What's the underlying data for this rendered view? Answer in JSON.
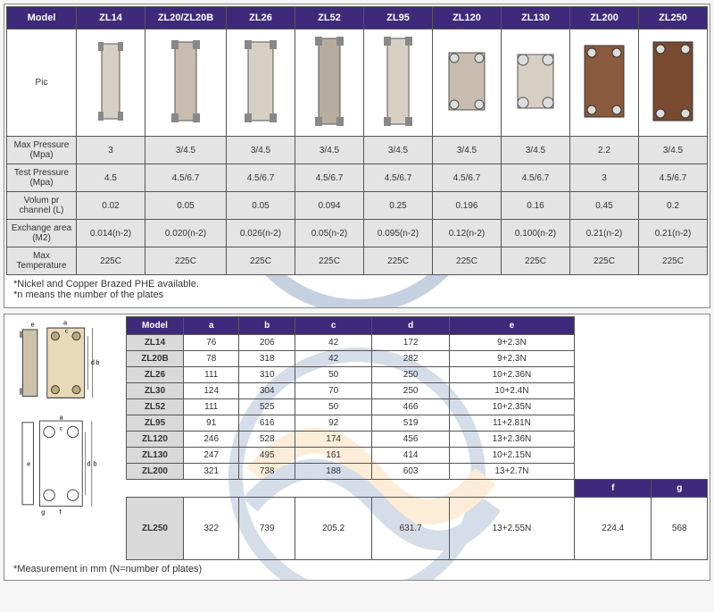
{
  "colors": {
    "header_bg": "#3d2a7a",
    "header_fg": "#ffffff",
    "rowhdr_bg": "#e4e4e4",
    "cell_bg": "#e4e4e4",
    "border": "#555555",
    "panel_border": "#888888",
    "background": "#f5f5f5"
  },
  "table1": {
    "header": [
      "Model",
      "ZL14",
      "ZL20/ZL20B",
      "ZL26",
      "ZL52",
      "ZL95",
      "ZL120",
      "ZL130",
      "ZL200",
      "ZL250"
    ],
    "pic_label": "Pic",
    "rows": [
      {
        "label": "Max Pressure (Mpa)",
        "values": [
          "3",
          "3/4.5",
          "3/4.5",
          "3/4.5",
          "3/4.5",
          "3/4.5",
          "3/4.5",
          "2.2",
          "3/4.5"
        ]
      },
      {
        "label": "Test Pressure (Mpa)",
        "values": [
          "4.5",
          "4.5/6.7",
          "4.5/6.7",
          "4.5/6.7",
          "4.5/6.7",
          "4.5/6.7",
          "4.5/6.7",
          "3",
          "4.5/6.7"
        ]
      },
      {
        "label": "Volum pr channel (L)",
        "values": [
          "0.02",
          "0.05",
          "0.05",
          "0.094",
          "0.25",
          "0.196",
          "0.16",
          "0.45",
          "0.2"
        ]
      },
      {
        "label": "Exchange area (M2)",
        "values": [
          "0.014(n-2)",
          "0.020(n-2)",
          "0.026(n-2)",
          "0.05(n-2)",
          "0.095(n-2)",
          "0.12(n-2)",
          "0.100(n-2)",
          "0.21(n-2)",
          "0.21(n-2)"
        ]
      },
      {
        "label": "Max Temperature",
        "values": [
          "225C",
          "225C",
          "225C",
          "225C",
          "225C",
          "225C",
          "225C",
          "225C",
          "225C"
        ]
      }
    ],
    "notes": [
      "Nickel and Copper Brazed PHE available.",
      "n means the number of the plates"
    ]
  },
  "table2": {
    "header": [
      "Model",
      "a",
      "b",
      "c",
      "d",
      "e"
    ],
    "rows": [
      {
        "model": "ZL14",
        "values": [
          "76",
          "206",
          "42",
          "172",
          "9+2.3N"
        ]
      },
      {
        "model": "ZL20B",
        "values": [
          "78",
          "318",
          "42",
          "282",
          "9+2.3N"
        ]
      },
      {
        "model": "ZL26",
        "values": [
          "111",
          "310",
          "50",
          "250",
          "10+2.36N"
        ]
      },
      {
        "model": "ZL30",
        "values": [
          "124",
          "304",
          "70",
          "250",
          "10+2.4N"
        ]
      },
      {
        "model": "ZL52",
        "values": [
          "111",
          "525",
          "50",
          "466",
          "10+2.35N"
        ]
      },
      {
        "model": "ZL95",
        "values": [
          "91",
          "616",
          "92",
          "519",
          "11+2.81N"
        ]
      },
      {
        "model": "ZL120",
        "values": [
          "246",
          "528",
          "174",
          "456",
          "13+2.36N"
        ]
      },
      {
        "model": "ZL130",
        "values": [
          "247",
          "495",
          "161",
          "414",
          "10+2.15N"
        ]
      },
      {
        "model": "ZL200",
        "values": [
          "321",
          "738",
          "188",
          "603",
          "13+2.7N"
        ]
      }
    ],
    "extra_header": [
      "f",
      "g"
    ],
    "extra_row": {
      "model": "ZL250",
      "values": [
        "322",
        "739",
        "205.2",
        "631.7",
        "13+2.55N",
        "224.4",
        "568"
      ]
    },
    "note": "Measurement in mm (N=number of plates)"
  }
}
